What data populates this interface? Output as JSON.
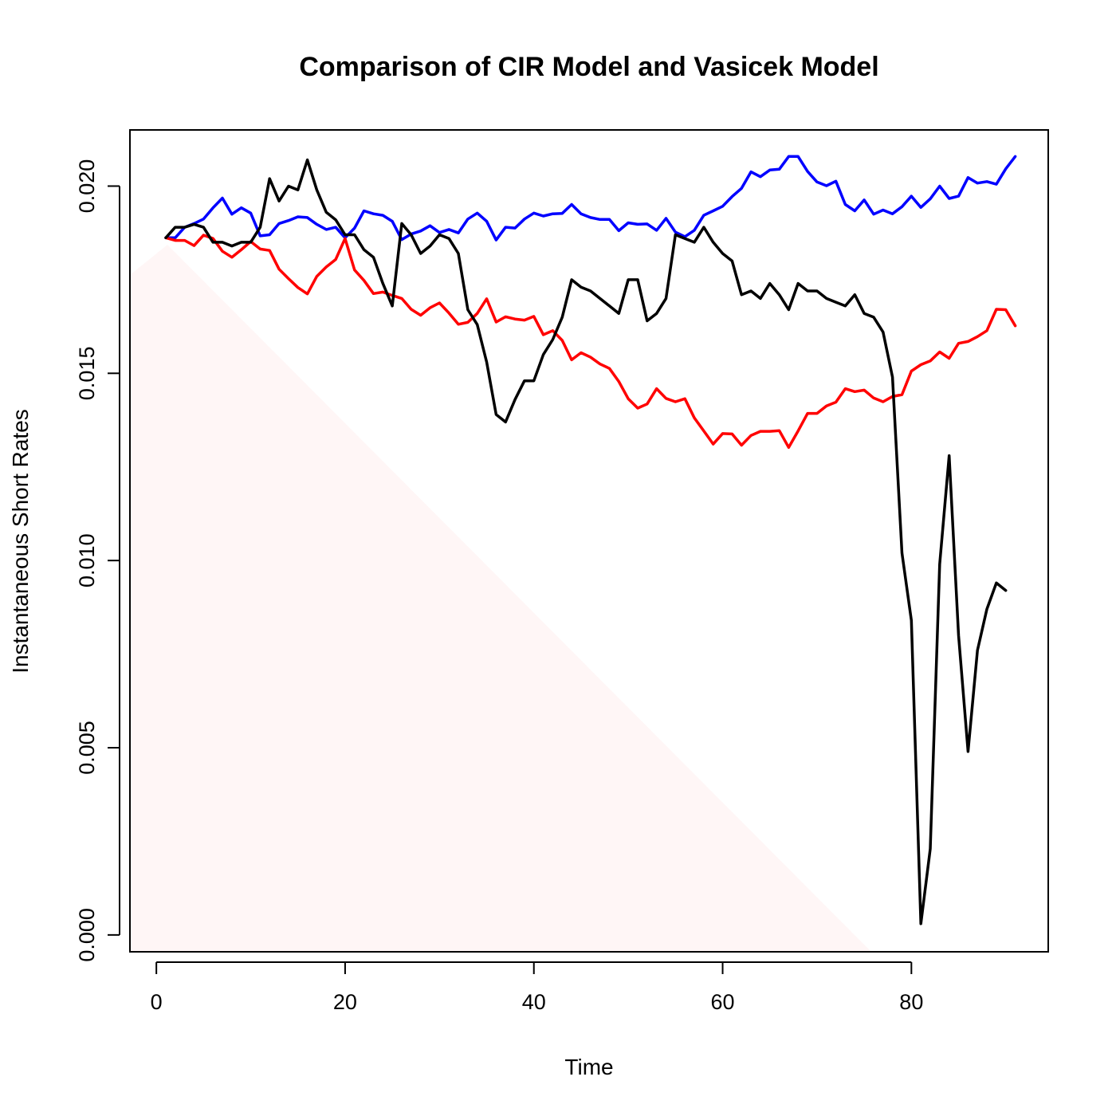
{
  "chart_data": {
    "type": "line",
    "title": "Comparison of CIR Model and Vasicek Model",
    "xlabel": "Time",
    "ylabel": "Instantaneous Short Rates",
    "xlim": [
      -2.8,
      94.5
    ],
    "ylim": [
      -0.00045,
      0.0215
    ],
    "x_ticks": [
      0,
      20,
      40,
      60,
      80
    ],
    "x_tick_labels": [
      "0",
      "20",
      "40",
      "60",
      "80"
    ],
    "y_ticks": [
      0.0,
      0.005,
      0.01,
      0.015,
      0.02
    ],
    "y_tick_labels": [
      "0.000",
      "0.005",
      "0.010",
      "0.015",
      "0.020"
    ],
    "grid": false,
    "x": [
      1,
      2,
      3,
      4,
      5,
      6,
      7,
      8,
      9,
      10,
      11,
      12,
      13,
      14,
      15,
      16,
      17,
      18,
      19,
      20,
      21,
      22,
      23,
      24,
      25,
      26,
      27,
      28,
      29,
      30,
      31,
      32,
      33,
      34,
      35,
      36,
      37,
      38,
      39,
      40,
      41,
      42,
      43,
      44,
      45,
      46,
      47,
      48,
      49,
      50,
      51,
      52,
      53,
      54,
      55,
      56,
      57,
      58,
      59,
      60,
      61,
      62,
      63,
      64,
      65,
      66,
      67,
      68,
      69,
      70,
      71,
      72,
      73,
      74,
      75,
      76,
      77,
      78,
      79,
      80,
      81,
      82,
      83,
      84,
      85,
      86,
      87,
      88,
      89,
      90,
      91
    ],
    "series": [
      {
        "color": "#0000ff",
        "values": [
          0.01862,
          0.01862,
          0.0189,
          0.019,
          0.01912,
          0.01942,
          0.01968,
          0.01925,
          0.01942,
          0.01928,
          0.01867,
          0.0187,
          0.019,
          0.01908,
          0.01918,
          0.01916,
          0.01898,
          0.01884,
          0.0189,
          0.01862,
          0.01888,
          0.01934,
          0.01926,
          0.01922,
          0.01906,
          0.01857,
          0.01872,
          0.0188,
          0.01894,
          0.01876,
          0.01884,
          0.01875,
          0.01912,
          0.01928,
          0.01906,
          0.01856,
          0.0189,
          0.01888,
          0.01912,
          0.01928,
          0.0192,
          0.01926,
          0.01927,
          0.01951,
          0.01926,
          0.01916,
          0.01911,
          0.01911,
          0.01881,
          0.01902,
          0.01898,
          0.01899,
          0.01882,
          0.01914,
          0.01877,
          0.01865,
          0.01882,
          0.01922,
          0.01934,
          0.01946,
          0.01972,
          0.01994,
          0.02038,
          0.02025,
          0.02043,
          0.02045,
          0.02079,
          0.02079,
          0.02039,
          0.02011,
          0.02001,
          0.02013,
          0.01951,
          0.01934,
          0.01963,
          0.01925,
          0.01936,
          0.01926,
          0.01945,
          0.01973,
          0.01943,
          0.01966,
          0.02,
          0.01967,
          0.01973,
          0.02023,
          0.02008,
          0.02012,
          0.02005,
          0.02046,
          0.02079
        ]
      },
      {
        "color": "#ff0000",
        "values": [
          0.01862,
          0.01855,
          0.01855,
          0.01841,
          0.01869,
          0.0186,
          0.01826,
          0.0181,
          0.0183,
          0.01852,
          0.01832,
          0.01828,
          0.01778,
          0.01753,
          0.01729,
          0.01712,
          0.01759,
          0.01784,
          0.01804,
          0.0186,
          0.01776,
          0.01748,
          0.01713,
          0.01717,
          0.01708,
          0.017,
          0.01671,
          0.01655,
          0.01675,
          0.01688,
          0.01661,
          0.01631,
          0.01636,
          0.0166,
          0.01699,
          0.01637,
          0.01651,
          0.01645,
          0.01642,
          0.01652,
          0.01603,
          0.01614,
          0.01588,
          0.01536,
          0.01555,
          0.01543,
          0.01525,
          0.01513,
          0.01478,
          0.01432,
          0.01407,
          0.01418,
          0.01459,
          0.01433,
          0.01424,
          0.01432,
          0.01381,
          0.01346,
          0.01311,
          0.01339,
          0.01338,
          0.01308,
          0.01334,
          0.01345,
          0.01345,
          0.01347,
          0.01302,
          0.01346,
          0.01393,
          0.01393,
          0.01413,
          0.01423,
          0.01459,
          0.01451,
          0.01455,
          0.01434,
          0.01424,
          0.01438,
          0.01443,
          0.01506,
          0.01523,
          0.01533,
          0.01557,
          0.0154,
          0.0158,
          0.01585,
          0.01598,
          0.01614,
          0.01671,
          0.0167,
          0.01627
        ]
      },
      {
        "color": "#000000",
        "values": [
          0.01862,
          0.0189,
          0.0189,
          0.01898,
          0.0189,
          0.0185,
          0.0185,
          0.0184,
          0.0185,
          0.0185,
          0.0189,
          0.0202,
          0.0196,
          0.02,
          0.0199,
          0.0207,
          0.0199,
          0.0193,
          0.0191,
          0.0187,
          0.0187,
          0.0183,
          0.0181,
          0.0174,
          0.0168,
          0.019,
          0.0187,
          0.0182,
          0.0184,
          0.0187,
          0.0186,
          0.0182,
          0.0167,
          0.0163,
          0.0153,
          0.0139,
          0.0137,
          0.0143,
          0.0148,
          0.0148,
          0.0155,
          0.0159,
          0.0165,
          0.0175,
          0.0173,
          0.0172,
          0.017,
          0.0168,
          0.0166,
          0.0175,
          0.0175,
          0.0164,
          0.0166,
          0.017,
          0.0187,
          0.0186,
          0.0185,
          0.0189,
          0.0185,
          0.0182,
          0.018,
          0.0171,
          0.0172,
          0.017,
          0.0174,
          0.0171,
          0.0167,
          0.0174,
          0.0172,
          0.0172,
          0.017,
          0.0169,
          0.0168,
          0.0171,
          0.0166,
          0.0165,
          0.0161,
          0.0149,
          0.0102,
          0.0084,
          0.0003,
          0.0023,
          0.0099,
          0.0128,
          0.008,
          0.0049,
          0.0076,
          0.0087,
          0.0094,
          0.0092,
          null
        ]
      }
    ]
  }
}
